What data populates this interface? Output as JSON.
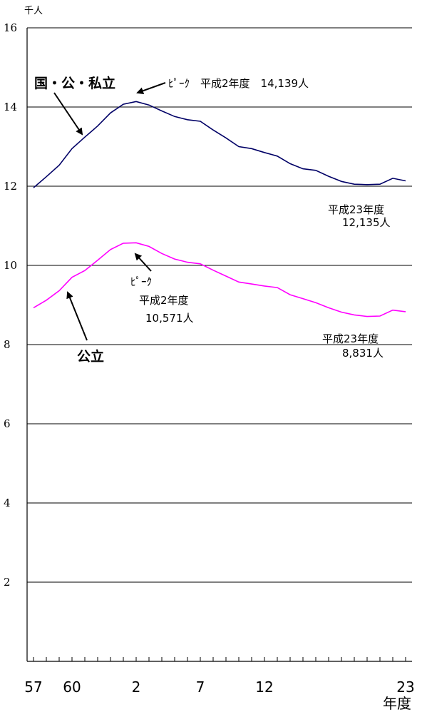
{
  "chart_data": {
    "type": "line",
    "title": "",
    "unit_label": "千人",
    "xlabel": "年度",
    "ylim": [
      0,
      16
    ],
    "y_ticks": [
      2,
      4,
      6,
      8,
      10,
      12,
      14,
      16
    ],
    "x_tick_labels": [
      {
        "x": 57,
        "label": "57"
      },
      {
        "x": 60,
        "label": "60"
      },
      {
        "x": 65,
        "label": "2"
      },
      {
        "x": 70,
        "label": "7"
      },
      {
        "x": 75,
        "label": "12"
      },
      {
        "x": 86,
        "label": "23"
      }
    ],
    "grid": true,
    "series": [
      {
        "name": "国・公・私立",
        "color": "#000066",
        "x": [
          57,
          58,
          59,
          60,
          61,
          62,
          63,
          64,
          65,
          66,
          67,
          68,
          69,
          70,
          71,
          72,
          73,
          74,
          75,
          76,
          77,
          78,
          79,
          80,
          81,
          82,
          83,
          84,
          85,
          86
        ],
        "values": [
          11.96,
          12.24,
          12.53,
          12.95,
          13.24,
          13.52,
          13.85,
          14.07,
          14.139,
          14.05,
          13.9,
          13.76,
          13.68,
          13.64,
          13.42,
          13.22,
          13.0,
          12.95,
          12.85,
          12.76,
          12.57,
          12.44,
          12.4,
          12.25,
          12.12,
          12.05,
          12.04,
          12.05,
          12.2,
          12.135
        ]
      },
      {
        "name": "公立",
        "color": "#ff00ff",
        "x": [
          57,
          58,
          59,
          60,
          61,
          62,
          63,
          64,
          65,
          66,
          67,
          68,
          69,
          70,
          71,
          72,
          73,
          74,
          75,
          76,
          77,
          78,
          79,
          80,
          81,
          82,
          83,
          84,
          85,
          86
        ],
        "values": [
          8.93,
          9.12,
          9.36,
          9.7,
          9.87,
          10.13,
          10.4,
          10.56,
          10.571,
          10.48,
          10.3,
          10.16,
          10.08,
          10.04,
          9.88,
          9.73,
          9.58,
          9.53,
          9.48,
          9.44,
          9.26,
          9.16,
          9.06,
          8.93,
          8.82,
          8.75,
          8.71,
          8.72,
          8.87,
          8.831
        ]
      }
    ],
    "annotations": {
      "total_label": "国・公・私立",
      "total_peak": "ﾋﾟｰｸ　平成2年度　14,139人",
      "total_last_1": "平成23年度",
      "total_last_2": "12,135人",
      "public_label": "公立",
      "public_peak_1": "ﾋﾟｰｸ",
      "public_peak_2": "平成2年度",
      "public_peak_3": "10,571人",
      "public_last_1": "平成23年度",
      "public_last_2": "8,831人"
    }
  }
}
